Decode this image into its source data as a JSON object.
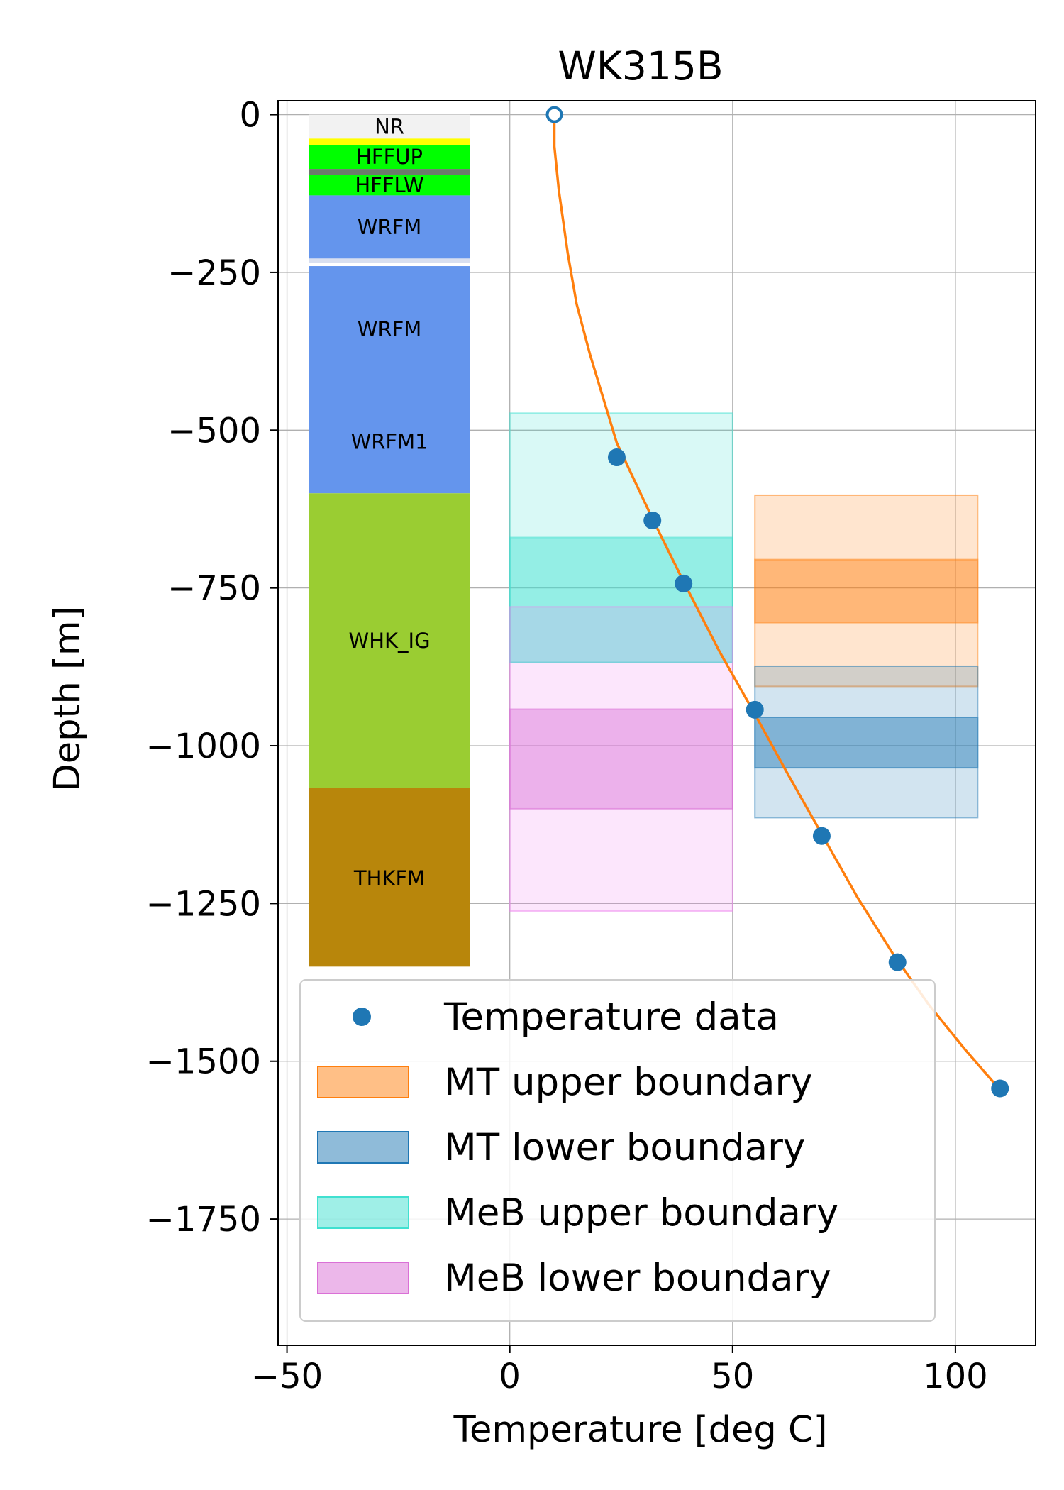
{
  "chart_data": {
    "type": "scatter",
    "title": "WK315B",
    "xlabel": "Temperature [deg C]",
    "ylabel": "Depth [m]",
    "xlim": [
      -52,
      118
    ],
    "ylim": [
      -1950,
      22
    ],
    "xticks": [
      -50,
      0,
      50,
      100
    ],
    "xtick_labels": [
      "−50",
      "0",
      "50",
      "100"
    ],
    "yticks": [
      0,
      -250,
      -500,
      -750,
      -1000,
      -1250,
      -1500,
      -1750
    ],
    "ytick_labels": [
      "0",
      "−250",
      "−500",
      "−750",
      "−1000",
      "−1250",
      "−1500",
      "−1750"
    ],
    "grid": true,
    "legend_position": "lower-left",
    "stratigraphy": {
      "x_range": [
        -45,
        -9
      ],
      "units": [
        {
          "name": "NR",
          "top": 0,
          "bottom": -38,
          "color": "#f2f2f2"
        },
        {
          "name": "",
          "top": -38,
          "bottom": -48,
          "color": "#ffff00"
        },
        {
          "name": "HFFUP",
          "top": -48,
          "bottom": -86,
          "color": "#00ff00"
        },
        {
          "name": "",
          "top": -86,
          "bottom": -96,
          "color": "#6b7b6b"
        },
        {
          "name": "HFFLW",
          "top": -96,
          "bottom": -128,
          "color": "#00ff00"
        },
        {
          "name": "WRFM",
          "top": -128,
          "bottom": -228,
          "color": "#6495ed"
        },
        {
          "name": "",
          "top": -228,
          "bottom": -235,
          "color": "#d8dff0"
        },
        {
          "name": "",
          "top": -235,
          "bottom": -240,
          "color": "#ffffff"
        },
        {
          "name": "WRFM",
          "top": -240,
          "bottom": -600,
          "color": "#6495ed",
          "label_depth": -340
        },
        {
          "name": "WRFM1",
          "top": -600,
          "bottom": -600,
          "color": "#6495ed",
          "label_depth": -518
        },
        {
          "name": "WHK_IG",
          "top": -600,
          "bottom": -1067,
          "color": "#9acd32"
        },
        {
          "name": "THKFM",
          "top": -1067,
          "bottom": -1350,
          "color": "#b8860b",
          "label_depth": -1210
        }
      ]
    },
    "boundary_bands": [
      {
        "series": "MeB upper boundary",
        "x": [
          0,
          50
        ],
        "depth_range": [
          -473,
          -868
        ],
        "kind": "range",
        "color": "#40e0d0"
      },
      {
        "series": "MeB upper boundary",
        "x": [
          0,
          50
        ],
        "depth_range": [
          -670,
          -868
        ],
        "kind": "likely",
        "color": "#40e0d0"
      },
      {
        "series": "MeB lower boundary",
        "x": [
          0,
          50
        ],
        "depth_range": [
          -780,
          -1262
        ],
        "kind": "range",
        "color": "#ee82ee"
      },
      {
        "series": "MeB lower boundary",
        "x": [
          0,
          50
        ],
        "depth_range": [
          -942,
          -1100
        ],
        "kind": "likely",
        "color": "#da70d6"
      },
      {
        "series": "MT upper boundary",
        "x": [
          55,
          105
        ],
        "depth_range": [
          -603,
          -906
        ],
        "kind": "range",
        "color": "#ff7f0e"
      },
      {
        "series": "MT upper boundary",
        "x": [
          55,
          105
        ],
        "depth_range": [
          -705,
          -805
        ],
        "kind": "likely",
        "color": "#ff7f0e"
      },
      {
        "series": "MT lower boundary",
        "x": [
          55,
          105
        ],
        "depth_range": [
          -874,
          -1114
        ],
        "kind": "range",
        "color": "#1f77b4"
      },
      {
        "series": "MT lower boundary",
        "x": [
          55,
          105
        ],
        "depth_range": [
          -955,
          -1035
        ],
        "kind": "likely",
        "color": "#1f77b4"
      }
    ],
    "series": [
      {
        "name": "Temperature data",
        "type": "scatter",
        "color": "#1f77b4",
        "points": [
          [
            24,
            -543
          ],
          [
            32,
            -643
          ],
          [
            39,
            -743
          ],
          [
            55,
            -943
          ],
          [
            70,
            -1143
          ],
          [
            87,
            -1343
          ],
          [
            110,
            -1543
          ]
        ]
      },
      {
        "name": "",
        "type": "scatter",
        "color": "#1f77b4",
        "marker": "hollow-circle",
        "points": [
          [
            10,
            0
          ]
        ]
      },
      {
        "name": "",
        "type": "line",
        "color": "#ff7f0e",
        "points": [
          [
            10,
            0
          ],
          [
            10,
            -50
          ],
          [
            11,
            -120
          ],
          [
            13,
            -220
          ],
          [
            15,
            -300
          ],
          [
            18,
            -380
          ],
          [
            21,
            -450
          ],
          [
            24,
            -520
          ],
          [
            28,
            -580
          ],
          [
            32,
            -640
          ],
          [
            39,
            -740
          ],
          [
            47,
            -850
          ],
          [
            55,
            -950
          ],
          [
            62,
            -1040
          ],
          [
            70,
            -1140
          ],
          [
            78,
            -1240
          ],
          [
            86,
            -1330
          ],
          [
            94,
            -1410
          ],
          [
            102,
            -1480
          ],
          [
            110,
            -1545
          ]
        ]
      }
    ],
    "legend": [
      {
        "label": "Temperature data",
        "kind": "marker",
        "color": "#1f77b4"
      },
      {
        "label": "MT upper boundary",
        "kind": "patch",
        "color": "#ff7f0e"
      },
      {
        "label": "MT lower boundary",
        "kind": "patch",
        "color": "#1f77b4"
      },
      {
        "label": "MeB upper boundary",
        "kind": "patch",
        "color": "#40e0d0"
      },
      {
        "label": "MeB lower boundary",
        "kind": "patch",
        "color": "#da70d6"
      }
    ]
  }
}
